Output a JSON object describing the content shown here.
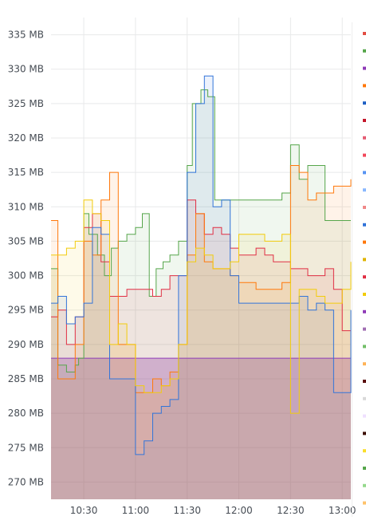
{
  "chart_data": {
    "type": "area",
    "title": "",
    "xlabel": "",
    "ylabel": "",
    "y_unit": "MB",
    "ylim": [
      267.5,
      337.5
    ],
    "y_ticks": [
      270,
      275,
      280,
      285,
      290,
      295,
      300,
      305,
      310,
      315,
      320,
      325,
      330,
      335
    ],
    "y_tick_labels": [
      "270 MB",
      "275 MB",
      "280 MB",
      "285 MB",
      "290 MB",
      "295 MB",
      "300 MB",
      "305 MB",
      "310 MB",
      "315 MB",
      "320 MB",
      "325 MB",
      "330 MB",
      "335 MB"
    ],
    "x_range": [
      "10:11",
      "13:05"
    ],
    "x_ticks": [
      "10:30",
      "11:00",
      "11:30",
      "12:00",
      "12:30",
      "13:00"
    ],
    "grid": true,
    "legend_position": "right",
    "series": [
      {
        "color": "#8f3bb8",
        "x": [
          "10:11",
          "10:30",
          "10:35",
          "10:45",
          "10:55",
          "11:00",
          "11:05",
          "11:10",
          "11:15",
          "11:20",
          "11:25",
          "11:30",
          "11:35",
          "11:40",
          "11:45",
          "11:50",
          "11:55",
          "12:00",
          "12:05",
          "12:10",
          "12:15",
          "12:20",
          "12:25",
          "12:30",
          "12:35",
          "12:40",
          "12:45",
          "12:50",
          "12:55",
          "13:00",
          "13:05"
        ],
        "values": [
          288,
          288,
          288,
          288,
          288,
          288,
          288,
          288,
          288,
          288,
          288,
          288,
          288,
          288,
          288,
          288,
          288,
          288,
          288,
          288,
          288,
          288,
          288,
          288,
          288,
          288,
          288,
          288,
          288,
          288,
          288
        ]
      },
      {
        "color": "#56a64b",
        "x": [
          "10:11",
          "10:15",
          "10:20",
          "10:25",
          "10:27",
          "10:30",
          "10:33",
          "10:38",
          "10:42",
          "10:46",
          "10:50",
          "10:55",
          "11:00",
          "11:04",
          "11:08",
          "11:12",
          "11:16",
          "11:20",
          "11:25",
          "11:30",
          "11:33",
          "11:38",
          "11:42",
          "11:46",
          "11:50",
          "11:55",
          "12:00",
          "12:05",
          "12:10",
          "12:15",
          "12:20",
          "12:25",
          "12:30",
          "12:35",
          "12:40",
          "12:45",
          "12:50",
          "12:55",
          "13:00",
          "13:05"
        ],
        "values": [
          301,
          287,
          286,
          287,
          288,
          309,
          306,
          303,
          300,
          304,
          305,
          306,
          307,
          309,
          297,
          301,
          302,
          303,
          305,
          316,
          325,
          327,
          326,
          311,
          311,
          311,
          311,
          311,
          311,
          311,
          311,
          312,
          319,
          314,
          316,
          316,
          308,
          308,
          308,
          308
        ]
      },
      {
        "color": "#e02f44",
        "x": [
          "10:11",
          "10:15",
          "10:20",
          "10:25",
          "10:30",
          "10:35",
          "10:40",
          "10:45",
          "10:50",
          "10:55",
          "11:00",
          "11:05",
          "11:10",
          "11:15",
          "11:20",
          "11:25",
          "11:30",
          "11:35",
          "11:40",
          "11:45",
          "11:50",
          "11:55",
          "12:00",
          "12:05",
          "12:10",
          "12:15",
          "12:20",
          "12:25",
          "12:30",
          "12:35",
          "12:40",
          "12:45",
          "12:50",
          "12:55",
          "13:00",
          "13:05"
        ],
        "values": [
          294,
          295,
          290,
          294,
          307,
          309,
          302,
          297,
          297,
          298,
          298,
          298,
          297,
          298,
          300,
          300,
          311,
          309,
          306,
          307,
          306,
          304,
          303,
          303,
          304,
          303,
          302,
          302,
          301,
          301,
          300,
          300,
          301,
          298,
          292,
          292
        ]
      },
      {
        "color": "#ff780a",
        "x": [
          "10:11",
          "10:15",
          "10:20",
          "10:25",
          "10:30",
          "10:35",
          "10:40",
          "10:45",
          "10:50",
          "10:55",
          "11:00",
          "11:05",
          "11:10",
          "11:15",
          "11:20",
          "11:25",
          "11:30",
          "11:35",
          "11:40",
          "11:45",
          "11:50",
          "11:55",
          "12:00",
          "12:05",
          "12:10",
          "12:15",
          "12:20",
          "12:25",
          "12:30",
          "12:35",
          "12:40",
          "12:45",
          "12:50",
          "12:55",
          "13:00",
          "13:05"
        ],
        "values": [
          308,
          285,
          285,
          290,
          305,
          303,
          311,
          315,
          290,
          290,
          283,
          283,
          285,
          284,
          286,
          290,
          303,
          309,
          302,
          301,
          301,
          300,
          299,
          299,
          298,
          298,
          298,
          299,
          316,
          315,
          311,
          312,
          312,
          313,
          313,
          314
        ]
      },
      {
        "color": "#3274d9",
        "x": [
          "10:11",
          "10:15",
          "10:20",
          "10:25",
          "10:30",
          "10:35",
          "10:40",
          "10:45",
          "10:50",
          "10:55",
          "11:00",
          "11:05",
          "11:10",
          "11:15",
          "11:20",
          "11:25",
          "11:30",
          "11:35",
          "11:40",
          "11:45",
          "11:50",
          "11:55",
          "12:00",
          "12:05",
          "12:10",
          "12:15",
          "12:20",
          "12:25",
          "12:30",
          "12:35",
          "12:40",
          "12:45",
          "12:50",
          "12:55",
          "13:00",
          "13:05"
        ],
        "values": [
          296,
          297,
          293,
          294,
          296,
          307,
          306,
          285,
          285,
          285,
          274,
          276,
          280,
          281,
          282,
          300,
          315,
          325,
          329,
          310,
          311,
          300,
          296,
          296,
          296,
          296,
          296,
          296,
          296,
          297,
          295,
          296,
          295,
          283,
          283,
          295
        ]
      },
      {
        "color": "#f2cc0c",
        "x": [
          "10:11",
          "10:15",
          "10:20",
          "10:25",
          "10:30",
          "10:35",
          "10:40",
          "10:45",
          "10:50",
          "10:55",
          "11:00",
          "11:05",
          "11:10",
          "11:15",
          "11:20",
          "11:25",
          "11:30",
          "11:35",
          "11:40",
          "11:45",
          "11:50",
          "11:55",
          "12:00",
          "12:05",
          "12:10",
          "12:15",
          "12:20",
          "12:25",
          "12:30",
          "12:35",
          "12:40",
          "12:45",
          "12:50",
          "12:55",
          "13:00",
          "13:05"
        ],
        "values": [
          303,
          303,
          304,
          305,
          311,
          309,
          308,
          290,
          293,
          290,
          284,
          283,
          283,
          284,
          285,
          290,
          302,
          304,
          303,
          301,
          301,
          302,
          306,
          306,
          306,
          305,
          305,
          306,
          280,
          298,
          298,
          297,
          296,
          296,
          298,
          302
        ]
      }
    ],
    "legend_colors": [
      "#e24d42",
      "#56a64b",
      "#8f3bb8",
      "#ff780a",
      "#1f60c4",
      "#c4162a",
      "#e55e74",
      "#f2495c",
      "#5794f2",
      "#8ab8ff",
      "#f08989",
      "#3274d9",
      "#ff780a",
      "#e0b400",
      "#e02f44",
      "#f2cc0c",
      "#8f3bb8",
      "#a16eb3",
      "#73bf69",
      "#ffb357",
      "#5a0f0f",
      "#d9d9d9",
      "#efe0ff",
      "#3d0f05",
      "#fade2a",
      "#56a64b",
      "#96d98d",
      "#ffc36b"
    ]
  }
}
